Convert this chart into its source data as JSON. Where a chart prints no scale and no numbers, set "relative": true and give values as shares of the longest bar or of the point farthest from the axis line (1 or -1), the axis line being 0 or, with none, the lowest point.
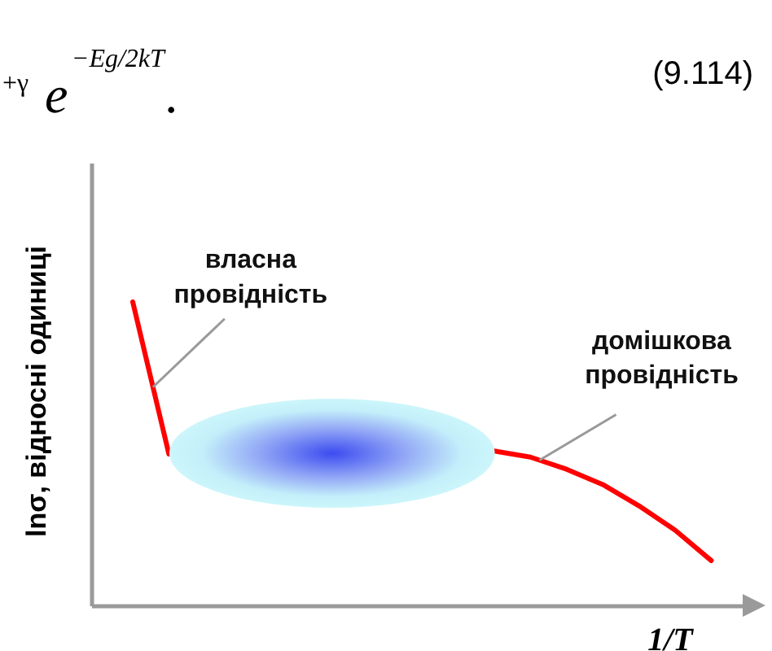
{
  "chart_data": {
    "type": "line",
    "relative": true,
    "line_style": "solid",
    "xlabel": "1/T",
    "ylabel": "lnσ, відносні одиниці",
    "annotations": [
      "$^{+γ}$e$^{−Eg/2kT}$.",
      "(9.114)",
      "власна провідність",
      "домішкова провідність"
    ],
    "categories": [
      null,
      null,
      null,
      null,
      null,
      null,
      null,
      null,
      null,
      null,
      null,
      null,
      null,
      null,
      null,
      null,
      null
    ],
    "series": [
      {
        "color": "#ff0000",
        "values": [
          1,
          0.5,
          null,
          null,
          null,
          null,
          null,
          null,
          null,
          null,
          null,
          null,
          null,
          null,
          null,
          null,
          null
        ]
      },
      {
        "color": "#ff0000",
        "values": [
          null,
          null,
          null,
          null,
          null,
          null,
          null,
          null,
          null,
          null,
          0.51,
          0.49,
          0.45,
          0.4,
          0.33,
          0.25,
          0.15
        ]
      }
    ]
  }
}
